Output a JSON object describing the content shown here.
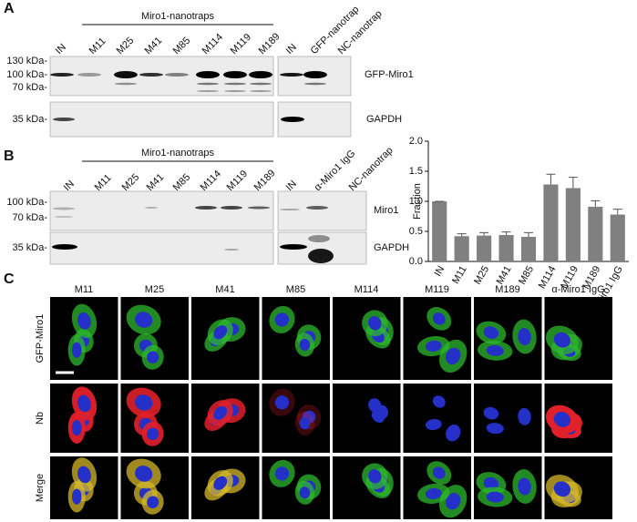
{
  "panel_labels": [
    "A",
    "B",
    "C"
  ],
  "panel_a": {
    "group_label": "Miro1-nanotraps",
    "lanes": [
      "IN",
      "M11",
      "M25",
      "M41",
      "M85",
      "M114",
      "M119",
      "M189",
      "IN",
      "GFP-nanotrap",
      "NC-nanotrap"
    ],
    "markers": [
      "130 kDa-",
      "100 kDa-",
      "70 kDa-",
      "35 kDa-"
    ],
    "blots": [
      "GFP-Miro1",
      "GAPDH"
    ]
  },
  "panel_b": {
    "group_label": "Miro1-nanotraps",
    "lanes": [
      "IN",
      "M11",
      "M25",
      "M41",
      "M85",
      "M114",
      "M119",
      "M189",
      "IN",
      "α-Miro1 IgG",
      "NC-nanotrap"
    ],
    "markers": [
      "100 kDa-",
      "70 kDa-",
      "35 kDa-"
    ],
    "blots": [
      "Miro1",
      "GAPDH"
    ]
  },
  "chart_data": {
    "type": "bar",
    "ylabel": "Fraction",
    "categories": [
      "IN",
      "M11",
      "M25",
      "M41",
      "M85",
      "M114",
      "M119",
      "M189",
      "α-Miro1 IgG"
    ],
    "values": [
      1.0,
      0.42,
      0.43,
      0.44,
      0.41,
      1.28,
      1.22,
      0.91,
      0.78
    ],
    "errors": [
      0,
      0.04,
      0.05,
      0.05,
      0.07,
      0.17,
      0.18,
      0.1,
      0.09
    ],
    "color": "#808080",
    "ylim": [
      0,
      2
    ],
    "yticks": [
      {
        "value": 0,
        "label": "0.0"
      },
      {
        "value": 0.5,
        "label": "0.5"
      },
      {
        "value": 1,
        "label": "1.0"
      },
      {
        "value": 1.5,
        "label": "1.5"
      },
      {
        "value": 2,
        "label": "2.0"
      }
    ]
  },
  "panel_c": {
    "columns": [
      "M11",
      "M25",
      "M41",
      "M85",
      "M114",
      "M119",
      "M189",
      "α-Miro1 IgG"
    ],
    "rows": [
      "GFP-Miro1",
      "Nb",
      "Merge"
    ]
  }
}
